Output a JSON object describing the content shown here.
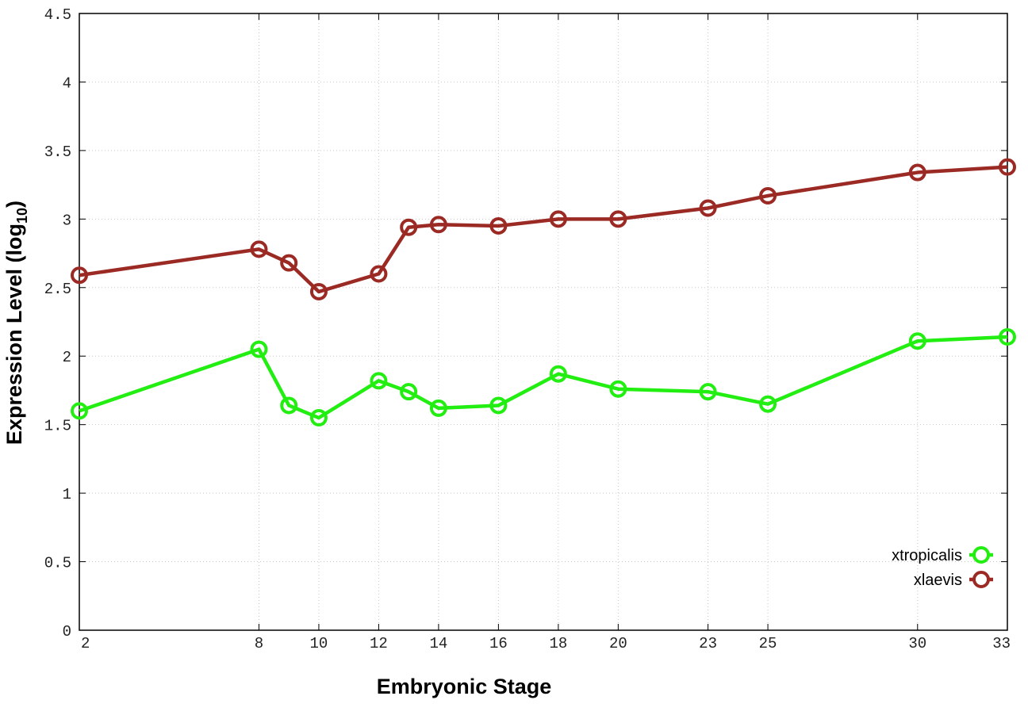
{
  "chart_data": {
    "type": "line",
    "title": "",
    "xlabel": "Embryonic Stage",
    "ylabel": {
      "prefix": "Expression Level (log",
      "subscript": "10",
      "suffix": ")"
    },
    "x": [
      2,
      8,
      9,
      10,
      12,
      13,
      14,
      16,
      18,
      20,
      23,
      25,
      30,
      33
    ],
    "x_tick_labels": [
      "2",
      "8",
      "10",
      "12",
      "14",
      "16",
      "18",
      "20",
      "23",
      "25",
      "30",
      "33"
    ],
    "xlim": [
      2,
      33
    ],
    "ylim": [
      0,
      4.5
    ],
    "y_tick_labels": [
      "0",
      "0.5",
      "1",
      "1.5",
      "2",
      "2.5",
      "3",
      "3.5",
      "4",
      "4.5"
    ],
    "grid": true,
    "legend_position": "bottom-right",
    "series": [
      {
        "name": "xtropicalis",
        "color": "#22ee11",
        "marker": "circle-open",
        "values": [
          1.6,
          2.05,
          1.64,
          1.55,
          1.82,
          1.74,
          1.62,
          1.64,
          1.87,
          1.76,
          1.74,
          1.65,
          2.11,
          2.14
        ]
      },
      {
        "name": "xlaevis",
        "color": "#9b2a24",
        "marker": "circle-open",
        "values": [
          2.59,
          2.78,
          2.68,
          2.47,
          2.6,
          2.94,
          2.96,
          2.95,
          3.0,
          3.0,
          3.08,
          3.17,
          3.34,
          3.38
        ]
      }
    ]
  }
}
